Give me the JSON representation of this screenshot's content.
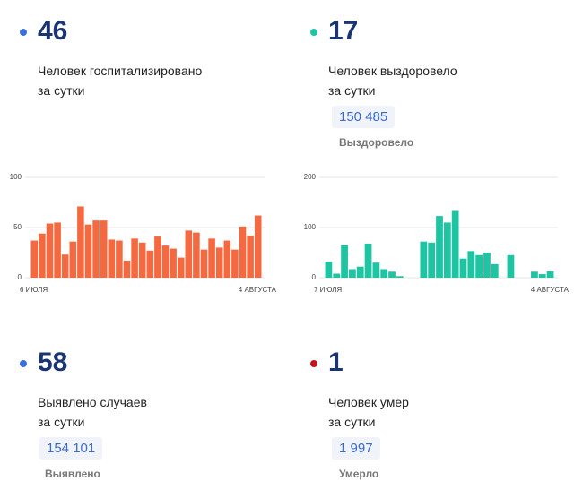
{
  "panels": [
    {
      "number": 46,
      "label_line1": "Человек госпитализировано",
      "label_line2": "за сутки"
    },
    {
      "number": 17,
      "label_line1": "Человек выздоровело",
      "label_line2": "за сутки",
      "total": "150 485",
      "total_label": "Выздоровело"
    },
    {
      "number": 58,
      "label_line1": "Выявлено случаев",
      "label_line2": "за сутки",
      "total": "154 101",
      "total_label": "Выявлено"
    },
    {
      "number": 1,
      "label_line1": "Человек умер",
      "label_line2": "за сутки",
      "total": "1 997",
      "total_label": "Умерло"
    }
  ],
  "chart_data": [
    {
      "type": "bar",
      "color": "#f4693f",
      "ylim": [
        0,
        100
      ],
      "yticks": [
        0,
        50,
        100
      ],
      "grid": true,
      "categories": [
        "6 ИЮЛЯ",
        null,
        null,
        null,
        null,
        null,
        null,
        null,
        null,
        null,
        null,
        null,
        null,
        null,
        null,
        null,
        null,
        null,
        null,
        null,
        null,
        null,
        null,
        null,
        null,
        null,
        null,
        null,
        null,
        "4 АВГУСТА"
      ],
      "values": [
        37,
        44,
        54,
        55,
        23,
        36,
        71,
        53,
        57,
        57,
        38,
        37,
        17,
        39,
        35,
        27,
        41,
        32,
        29,
        20,
        47,
        45,
        28,
        39,
        30,
        37,
        28,
        51,
        42,
        62
      ]
    },
    {
      "type": "bar",
      "color": "#1fc4a3",
      "ylim": [
        0,
        200
      ],
      "yticks": [
        0,
        100,
        200
      ],
      "grid": true,
      "categories": [
        "7 ИЮЛЯ",
        null,
        null,
        null,
        null,
        null,
        null,
        null,
        null,
        null,
        null,
        null,
        null,
        null,
        null,
        null,
        null,
        null,
        null,
        null,
        null,
        null,
        null,
        null,
        null,
        null,
        null,
        null,
        "4 АВГУСТА"
      ],
      "values": [
        32,
        8,
        65,
        17,
        22,
        68,
        30,
        17,
        12,
        3,
        0,
        0,
        72,
        70,
        123,
        110,
        133,
        38,
        53,
        45,
        50,
        27,
        0,
        45,
        0,
        0,
        12,
        7,
        13
      ]
    }
  ]
}
